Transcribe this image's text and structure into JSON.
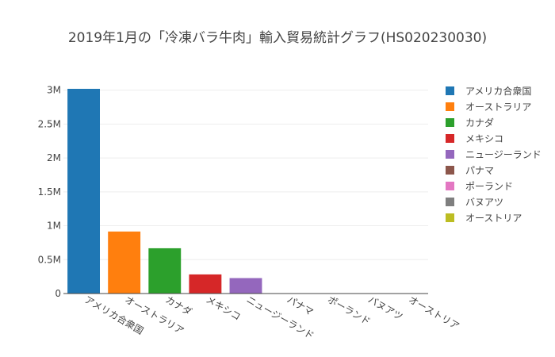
{
  "chart_data": {
    "type": "bar",
    "title": "2019年1月の「冷凍バラ牛肉」輸入貿易統計グラフ(HS020230030)",
    "xlabel": "",
    "ylabel": "",
    "categories": [
      "アメリカ合衆国",
      "オーストラリア",
      "カナダ",
      "メキシコ",
      "ニュージーランド",
      "パナマ",
      "ポーランド",
      "バヌアツ",
      "オーストリア"
    ],
    "values": [
      3020000,
      915000,
      668000,
      282000,
      228000,
      0,
      0,
      0,
      0
    ],
    "ylim": [
      0,
      3160000
    ],
    "yticks": [
      {
        "value": 0,
        "label": "0"
      },
      {
        "value": 500000,
        "label": "0.5M"
      },
      {
        "value": 1000000,
        "label": "1M"
      },
      {
        "value": 1500000,
        "label": "1.5M"
      },
      {
        "value": 2000000,
        "label": "2M"
      },
      {
        "value": 2500000,
        "label": "2.5M"
      },
      {
        "value": 3000000,
        "label": "3M"
      }
    ],
    "colors": [
      "#1f77b4",
      "#ff7f0e",
      "#2ca02c",
      "#d62728",
      "#9467bd",
      "#8c564b",
      "#e377c2",
      "#7f7f7f",
      "#bcbd22"
    ],
    "grid": true,
    "legend": {
      "position": "right",
      "entries": [
        "アメリカ合衆国",
        "オーストラリア",
        "カナダ",
        "メキシコ",
        "ニュージーランド",
        "パナマ",
        "ポーランド",
        "バヌアツ",
        "オーストリア"
      ]
    }
  }
}
